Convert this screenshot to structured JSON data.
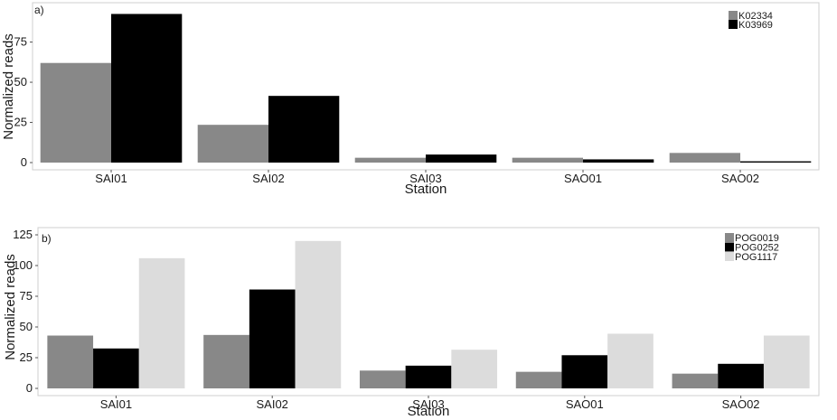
{
  "chart_data": [
    {
      "type": "bar",
      "panel_label": "a)",
      "xlabel": "Station",
      "ylabel": "Normalized reads",
      "categories": [
        "SAI01",
        "SAI02",
        "SAI03",
        "SAO01",
        "SAO02"
      ],
      "series": [
        {
          "name": "K02334",
          "color": "#888888",
          "values": [
            62,
            23.5,
            3,
            3,
            6
          ]
        },
        {
          "name": "K03969",
          "color": "#000000",
          "values": [
            92.5,
            41.5,
            5,
            2,
            0.8
          ]
        }
      ],
      "yticks": [
        0,
        25,
        50,
        75
      ],
      "ylim": [
        0,
        95
      ],
      "grid": false,
      "legend": "top-right"
    },
    {
      "type": "bar",
      "panel_label": "b)",
      "xlabel": "Station",
      "ylabel": "Normalized reads",
      "categories": [
        "SAI01",
        "SAI02",
        "SAI03",
        "SAO01",
        "SAO02"
      ],
      "series": [
        {
          "name": "POG0019",
          "color": "#888888",
          "values": [
            43,
            43.5,
            14.5,
            13.5,
            12
          ]
        },
        {
          "name": "POG0252",
          "color": "#000000",
          "values": [
            32.5,
            80.5,
            18.5,
            27,
            20
          ]
        },
        {
          "name": "POG1117",
          "color": "#dcdcdc",
          "values": [
            106,
            120,
            31.5,
            44.5,
            43
          ]
        }
      ],
      "yticks": [
        0,
        25,
        50,
        75,
        100,
        125
      ],
      "ylim": [
        0,
        125
      ],
      "grid": false,
      "legend": "top-right"
    }
  ]
}
